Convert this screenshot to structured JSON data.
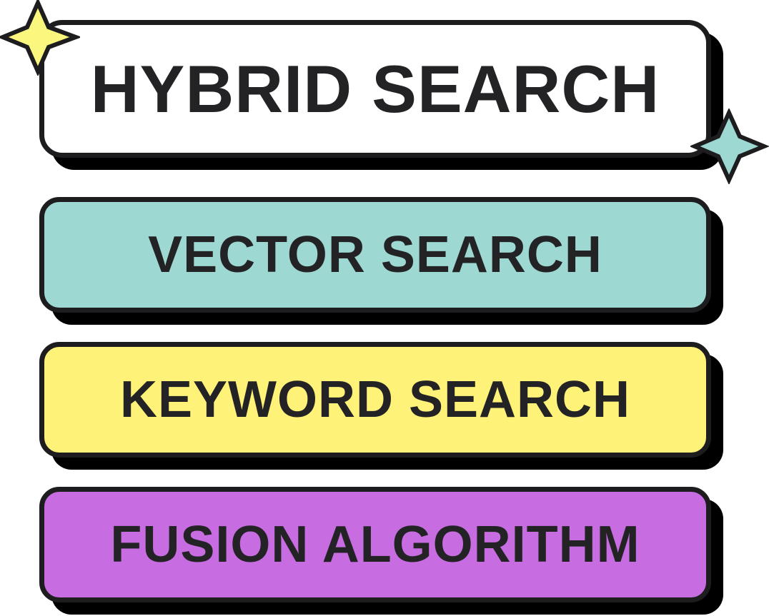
{
  "diagram": {
    "title": {
      "label": "HYBRID SEARCH",
      "color": "#ffffff"
    },
    "layers": [
      {
        "label": "VECTOR SEARCH",
        "color": "#9ed8d2"
      },
      {
        "label": "KEYWORD SEARCH",
        "color": "#fff279"
      },
      {
        "label": "FUSION ALGORITHM",
        "color": "#c86ce2"
      }
    ],
    "sparkles": [
      {
        "name": "sparkle-yellow-icon",
        "color": "#fbf77e"
      },
      {
        "name": "sparkle-teal-icon",
        "color": "#9ed8d2"
      }
    ],
    "outline_color": "#1d1d1f",
    "shadow_color": "#000000",
    "text_color": "#232325"
  }
}
